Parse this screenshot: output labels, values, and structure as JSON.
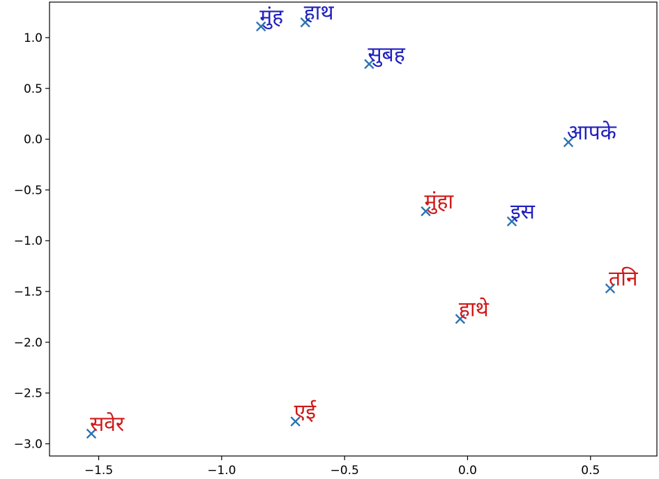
{
  "chart_data": {
    "type": "scatter",
    "title": "",
    "xlabel": "",
    "ylabel": "",
    "xlim": [
      -1.7,
      0.77
    ],
    "ylim": [
      -3.12,
      1.35
    ],
    "x_ticks": [
      -1.5,
      -1.0,
      -0.5,
      0.0,
      0.5
    ],
    "x_tick_labels": [
      "−1.5",
      "−1.0",
      "−0.5",
      "0.0",
      "0.5"
    ],
    "y_ticks": [
      1.0,
      0.5,
      0.0,
      -0.5,
      -1.0,
      -1.5,
      -2.0,
      -2.5,
      -3.0
    ],
    "y_tick_labels": [
      "1.0",
      "0.5",
      "0.0",
      "−0.5",
      "−1.0",
      "−1.5",
      "−2.0",
      "−2.5",
      "−3.0"
    ],
    "grid": false,
    "marker": "x",
    "marker_color": "#2b73b0",
    "colors": {
      "blue_group": "#1f1fbf",
      "red_group": "#d01818"
    },
    "points": [
      {
        "label": "मुंह",
        "x": -0.84,
        "y": 1.11,
        "group": "blue_group"
      },
      {
        "label": "हाथ",
        "x": -0.66,
        "y": 1.15,
        "group": "blue_group"
      },
      {
        "label": "सुबह",
        "x": -0.4,
        "y": 0.74,
        "group": "blue_group"
      },
      {
        "label": "आपके",
        "x": 0.41,
        "y": -0.03,
        "group": "blue_group"
      },
      {
        "label": "इस",
        "x": 0.18,
        "y": -0.81,
        "group": "blue_group"
      },
      {
        "label": "मुंहा",
        "x": -0.17,
        "y": -0.71,
        "group": "red_group"
      },
      {
        "label": "तनि",
        "x": 0.58,
        "y": -1.47,
        "group": "red_group"
      },
      {
        "label": "हाथे",
        "x": -0.03,
        "y": -1.77,
        "group": "red_group"
      },
      {
        "label": "एई",
        "x": -0.7,
        "y": -2.78,
        "group": "red_group"
      },
      {
        "label": "सवेर",
        "x": -1.53,
        "y": -2.9,
        "group": "red_group"
      }
    ]
  }
}
